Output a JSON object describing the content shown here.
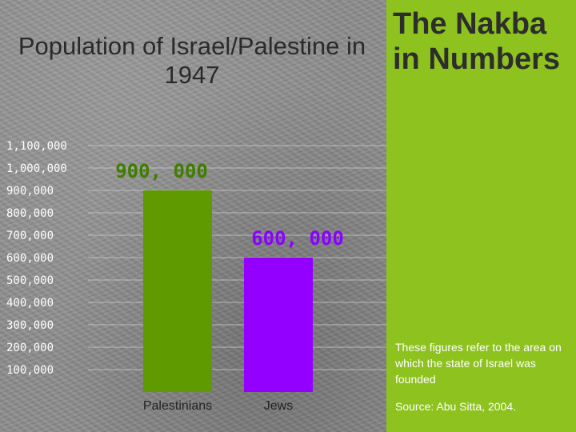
{
  "chart_data": {
    "type": "bar",
    "title": "Population of Israel/Palestine in 1947",
    "categories": [
      "Palestinians",
      "Jews"
    ],
    "values": [
      900000,
      600000
    ],
    "data_labels": [
      "900, 000",
      "600, 000"
    ],
    "bar_colors": [
      "#5f9a00",
      "#9400ff"
    ],
    "label_colors": [
      "#3f7d00",
      "#8a00ff"
    ],
    "yticks": [
      "100,000",
      "200,000",
      "300,000",
      "400,000",
      "500,000",
      "600,000",
      "700,000",
      "800,000",
      "900,000",
      "1,000,000",
      "1,100,000"
    ],
    "ylim": [
      0,
      1100000
    ],
    "grid": true,
    "xlabel": "",
    "ylabel": ""
  },
  "panel": {
    "title": "The Nakba in Numbers",
    "note": "These figures refer to the area on which the state of Israel was founded",
    "source": "Source: Abu Sitta, 2004.",
    "color": "#8dc21f"
  }
}
